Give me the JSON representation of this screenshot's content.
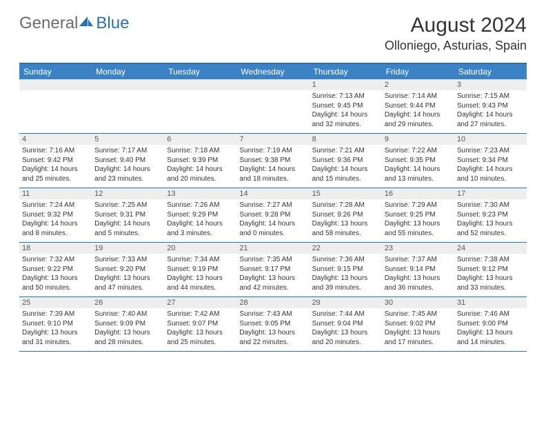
{
  "logo": {
    "general": "General",
    "blue": "Blue"
  },
  "title": "August 2024",
  "location": "Olloniego, Asturias, Spain",
  "colors": {
    "header_bar": "#3a82c4",
    "border": "#2a6fb0",
    "daynum_bg": "#eeeeee",
    "text": "#333333",
    "logo_gray": "#6b6b6b",
    "logo_blue": "#2a6fb0"
  },
  "weekdays": [
    "Sunday",
    "Monday",
    "Tuesday",
    "Wednesday",
    "Thursday",
    "Friday",
    "Saturday"
  ],
  "weeks": [
    [
      {
        "n": "",
        "sr": "",
        "ss": "",
        "dl": ""
      },
      {
        "n": "",
        "sr": "",
        "ss": "",
        "dl": ""
      },
      {
        "n": "",
        "sr": "",
        "ss": "",
        "dl": ""
      },
      {
        "n": "",
        "sr": "",
        "ss": "",
        "dl": ""
      },
      {
        "n": "1",
        "sr": "Sunrise: 7:13 AM",
        "ss": "Sunset: 9:45 PM",
        "dl": "Daylight: 14 hours and 32 minutes."
      },
      {
        "n": "2",
        "sr": "Sunrise: 7:14 AM",
        "ss": "Sunset: 9:44 PM",
        "dl": "Daylight: 14 hours and 29 minutes."
      },
      {
        "n": "3",
        "sr": "Sunrise: 7:15 AM",
        "ss": "Sunset: 9:43 PM",
        "dl": "Daylight: 14 hours and 27 minutes."
      }
    ],
    [
      {
        "n": "4",
        "sr": "Sunrise: 7:16 AM",
        "ss": "Sunset: 9:42 PM",
        "dl": "Daylight: 14 hours and 25 minutes."
      },
      {
        "n": "5",
        "sr": "Sunrise: 7:17 AM",
        "ss": "Sunset: 9:40 PM",
        "dl": "Daylight: 14 hours and 23 minutes."
      },
      {
        "n": "6",
        "sr": "Sunrise: 7:18 AM",
        "ss": "Sunset: 9:39 PM",
        "dl": "Daylight: 14 hours and 20 minutes."
      },
      {
        "n": "7",
        "sr": "Sunrise: 7:19 AM",
        "ss": "Sunset: 9:38 PM",
        "dl": "Daylight: 14 hours and 18 minutes."
      },
      {
        "n": "8",
        "sr": "Sunrise: 7:21 AM",
        "ss": "Sunset: 9:36 PM",
        "dl": "Daylight: 14 hours and 15 minutes."
      },
      {
        "n": "9",
        "sr": "Sunrise: 7:22 AM",
        "ss": "Sunset: 9:35 PM",
        "dl": "Daylight: 14 hours and 13 minutes."
      },
      {
        "n": "10",
        "sr": "Sunrise: 7:23 AM",
        "ss": "Sunset: 9:34 PM",
        "dl": "Daylight: 14 hours and 10 minutes."
      }
    ],
    [
      {
        "n": "11",
        "sr": "Sunrise: 7:24 AM",
        "ss": "Sunset: 9:32 PM",
        "dl": "Daylight: 14 hours and 8 minutes."
      },
      {
        "n": "12",
        "sr": "Sunrise: 7:25 AM",
        "ss": "Sunset: 9:31 PM",
        "dl": "Daylight: 14 hours and 5 minutes."
      },
      {
        "n": "13",
        "sr": "Sunrise: 7:26 AM",
        "ss": "Sunset: 9:29 PM",
        "dl": "Daylight: 14 hours and 3 minutes."
      },
      {
        "n": "14",
        "sr": "Sunrise: 7:27 AM",
        "ss": "Sunset: 9:28 PM",
        "dl": "Daylight: 14 hours and 0 minutes."
      },
      {
        "n": "15",
        "sr": "Sunrise: 7:28 AM",
        "ss": "Sunset: 9:26 PM",
        "dl": "Daylight: 13 hours and 58 minutes."
      },
      {
        "n": "16",
        "sr": "Sunrise: 7:29 AM",
        "ss": "Sunset: 9:25 PM",
        "dl": "Daylight: 13 hours and 55 minutes."
      },
      {
        "n": "17",
        "sr": "Sunrise: 7:30 AM",
        "ss": "Sunset: 9:23 PM",
        "dl": "Daylight: 13 hours and 52 minutes."
      }
    ],
    [
      {
        "n": "18",
        "sr": "Sunrise: 7:32 AM",
        "ss": "Sunset: 9:22 PM",
        "dl": "Daylight: 13 hours and 50 minutes."
      },
      {
        "n": "19",
        "sr": "Sunrise: 7:33 AM",
        "ss": "Sunset: 9:20 PM",
        "dl": "Daylight: 13 hours and 47 minutes."
      },
      {
        "n": "20",
        "sr": "Sunrise: 7:34 AM",
        "ss": "Sunset: 9:19 PM",
        "dl": "Daylight: 13 hours and 44 minutes."
      },
      {
        "n": "21",
        "sr": "Sunrise: 7:35 AM",
        "ss": "Sunset: 9:17 PM",
        "dl": "Daylight: 13 hours and 42 minutes."
      },
      {
        "n": "22",
        "sr": "Sunrise: 7:36 AM",
        "ss": "Sunset: 9:15 PM",
        "dl": "Daylight: 13 hours and 39 minutes."
      },
      {
        "n": "23",
        "sr": "Sunrise: 7:37 AM",
        "ss": "Sunset: 9:14 PM",
        "dl": "Daylight: 13 hours and 36 minutes."
      },
      {
        "n": "24",
        "sr": "Sunrise: 7:38 AM",
        "ss": "Sunset: 9:12 PM",
        "dl": "Daylight: 13 hours and 33 minutes."
      }
    ],
    [
      {
        "n": "25",
        "sr": "Sunrise: 7:39 AM",
        "ss": "Sunset: 9:10 PM",
        "dl": "Daylight: 13 hours and 31 minutes."
      },
      {
        "n": "26",
        "sr": "Sunrise: 7:40 AM",
        "ss": "Sunset: 9:09 PM",
        "dl": "Daylight: 13 hours and 28 minutes."
      },
      {
        "n": "27",
        "sr": "Sunrise: 7:42 AM",
        "ss": "Sunset: 9:07 PM",
        "dl": "Daylight: 13 hours and 25 minutes."
      },
      {
        "n": "28",
        "sr": "Sunrise: 7:43 AM",
        "ss": "Sunset: 9:05 PM",
        "dl": "Daylight: 13 hours and 22 minutes."
      },
      {
        "n": "29",
        "sr": "Sunrise: 7:44 AM",
        "ss": "Sunset: 9:04 PM",
        "dl": "Daylight: 13 hours and 20 minutes."
      },
      {
        "n": "30",
        "sr": "Sunrise: 7:45 AM",
        "ss": "Sunset: 9:02 PM",
        "dl": "Daylight: 13 hours and 17 minutes."
      },
      {
        "n": "31",
        "sr": "Sunrise: 7:46 AM",
        "ss": "Sunset: 9:00 PM",
        "dl": "Daylight: 13 hours and 14 minutes."
      }
    ]
  ]
}
